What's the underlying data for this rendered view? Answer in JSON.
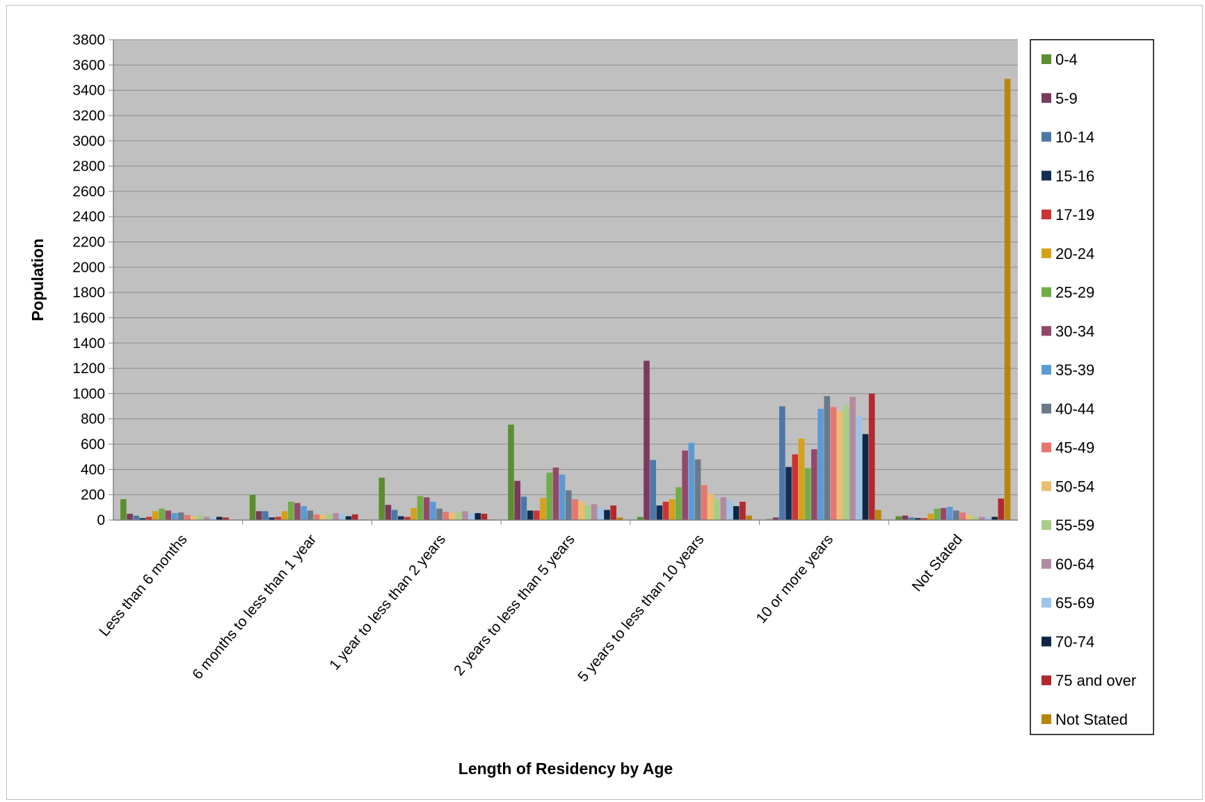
{
  "chart_data": {
    "type": "bar",
    "title": "",
    "xlabel": "Length of Residency by Age",
    "ylabel": "Population",
    "ylim": [
      0,
      3800
    ],
    "ytick_step": 200,
    "grid": true,
    "legend_position": "right",
    "categories": [
      "Less than 6 months",
      "6 months to less than 1 year",
      "1 year to less than 2 years",
      "2 years to less than 5 years",
      "5 years to less than 10 years",
      "10 or more years",
      "Not Stated"
    ],
    "series": [
      {
        "name": "0-4",
        "color": "#5b8f2e",
        "values": [
          165,
          200,
          335,
          755,
          25,
          8,
          30
        ]
      },
      {
        "name": "5-9",
        "color": "#7b3a5c",
        "values": [
          50,
          70,
          120,
          310,
          1260,
          20,
          35
        ]
      },
      {
        "name": "10-14",
        "color": "#4a78a8",
        "values": [
          35,
          70,
          80,
          185,
          475,
          900,
          20
        ]
      },
      {
        "name": "15-16",
        "color": "#132e56",
        "values": [
          15,
          20,
          30,
          75,
          115,
          420,
          15
        ]
      },
      {
        "name": "17-19",
        "color": "#cc3333",
        "values": [
          25,
          25,
          25,
          75,
          145,
          520,
          15
        ]
      },
      {
        "name": "20-24",
        "color": "#d6a116",
        "values": [
          70,
          70,
          95,
          175,
          165,
          645,
          50
        ]
      },
      {
        "name": "25-29",
        "color": "#70ad47",
        "values": [
          90,
          145,
          190,
          375,
          260,
          410,
          90
        ]
      },
      {
        "name": "30-34",
        "color": "#944869",
        "values": [
          75,
          135,
          180,
          415,
          550,
          560,
          95
        ]
      },
      {
        "name": "35-39",
        "color": "#5b9bd5",
        "values": [
          55,
          110,
          145,
          360,
          610,
          880,
          105
        ]
      },
      {
        "name": "40-44",
        "color": "#6a7a8a",
        "values": [
          60,
          75,
          90,
          235,
          480,
          980,
          75
        ]
      },
      {
        "name": "45-49",
        "color": "#e8766e",
        "values": [
          40,
          45,
          65,
          165,
          275,
          895,
          60
        ]
      },
      {
        "name": "50-54",
        "color": "#ecbd6e",
        "values": [
          30,
          40,
          55,
          145,
          210,
          860,
          40
        ]
      },
      {
        "name": "55-59",
        "color": "#a6ce86",
        "values": [
          40,
          45,
          60,
          115,
          165,
          910,
          25
        ]
      },
      {
        "name": "60-64",
        "color": "#b38aa0",
        "values": [
          25,
          55,
          70,
          125,
          180,
          975,
          25
        ]
      },
      {
        "name": "65-69",
        "color": "#9dc3e6",
        "values": [
          20,
          50,
          50,
          100,
          155,
          820,
          20
        ]
      },
      {
        "name": "70-74",
        "color": "#0f2646",
        "values": [
          25,
          30,
          55,
          80,
          110,
          680,
          25
        ]
      },
      {
        "name": "75 and over",
        "color": "#b3272d",
        "values": [
          20,
          45,
          50,
          115,
          145,
          1000,
          170
        ]
      },
      {
        "name": "Not Stated",
        "color": "#b8860b",
        "values": [
          5,
          5,
          5,
          20,
          35,
          80,
          3490
        ]
      }
    ]
  }
}
